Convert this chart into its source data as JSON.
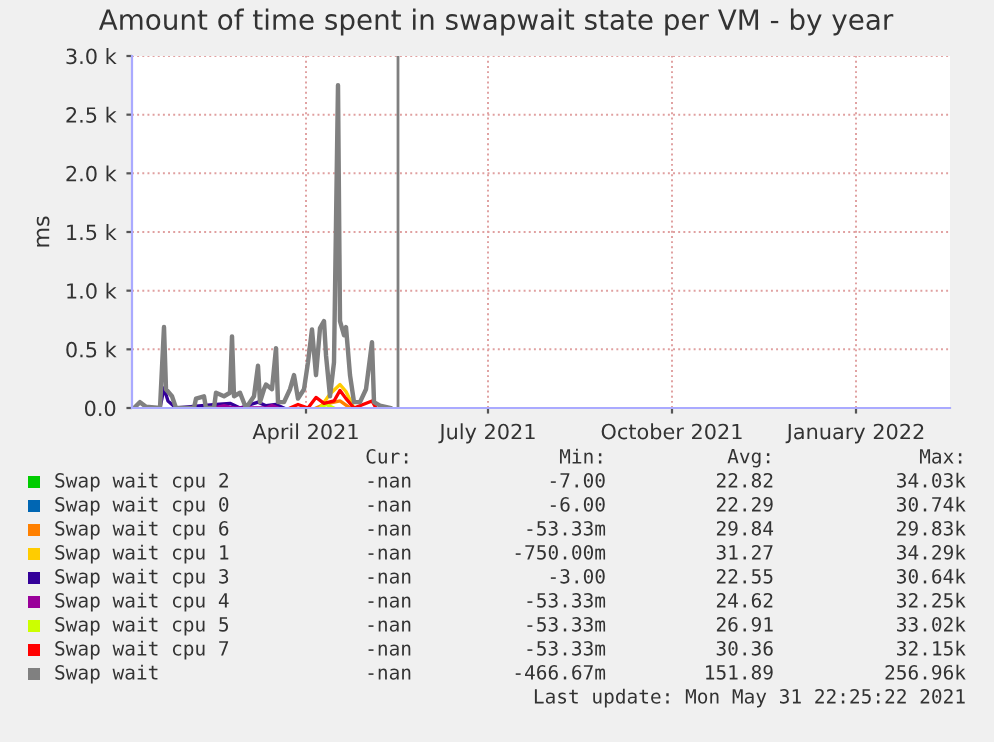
{
  "chart_data": {
    "type": "line",
    "title": "Amount of time spent in swapwait state per VM - by year",
    "ylabel": "ms",
    "xlim": [
      "2021-01-04",
      "2022-02-17"
    ],
    "xticks": [
      {
        "value": "2021-04-01",
        "label": "April 2021"
      },
      {
        "value": "2021-07-01",
        "label": "July 2021"
      },
      {
        "value": "2021-10-01",
        "label": "October 2021"
      },
      {
        "value": "2022-01-01",
        "label": "January 2022"
      }
    ],
    "ylim": [
      0,
      3000
    ],
    "yticks": [
      {
        "value": 0,
        "label": "0.0"
      },
      {
        "value": 500,
        "label": "0.5 k"
      },
      {
        "value": 1000,
        "label": "1.0 k"
      },
      {
        "value": 1500,
        "label": "1.5 k"
      },
      {
        "value": 2000,
        "label": "2.0 k"
      },
      {
        "value": 2500,
        "label": "2.5 k"
      },
      {
        "value": 3000,
        "label": "3.0 k"
      }
    ],
    "grid": true,
    "legend": "bottom",
    "ref_lines": [
      {
        "axis": "x",
        "value": "2021-05-17",
        "color": "#7f7f7f"
      }
    ],
    "series": [
      {
        "name": "Swap wait cpu 2",
        "color": "#00cc00"
      },
      {
        "name": "Swap wait cpu 0",
        "color": "#0066b3"
      },
      {
        "name": "Swap wait cpu 6",
        "color": "#ff8000",
        "x": [
          "2021-04-06",
          "2021-04-10",
          "2021-04-18",
          "2021-04-23"
        ],
        "values": [
          0,
          30,
          60,
          0
        ]
      },
      {
        "name": "Swap wait cpu 1",
        "color": "#ffcc00",
        "x": [
          "2021-04-08",
          "2021-04-13",
          "2021-04-18",
          "2021-04-21",
          "2021-04-25"
        ],
        "values": [
          0,
          120,
          200,
          140,
          0
        ]
      },
      {
        "name": "Swap wait cpu 3",
        "color": "#330099",
        "x": [
          "2021-01-18",
          "2021-01-20",
          "2021-01-22",
          "2021-01-26",
          "2021-02-15",
          "2021-02-22",
          "2021-02-27",
          "2021-03-08",
          "2021-03-12",
          "2021-03-17",
          "2021-03-21"
        ],
        "values": [
          0,
          170,
          60,
          0,
          30,
          40,
          0,
          50,
          20,
          30,
          0
        ]
      },
      {
        "name": "Swap wait cpu 4",
        "color": "#990099",
        "x": [
          "2021-02-14",
          "2021-02-19",
          "2021-02-24",
          "2021-03-12",
          "2021-03-15",
          "2021-03-18"
        ],
        "values": [
          0,
          20,
          0,
          0,
          20,
          0
        ]
      },
      {
        "name": "Swap wait cpu 5",
        "color": "#ccff00",
        "x": [
          "2021-04-08",
          "2021-04-11",
          "2021-04-15"
        ],
        "values": [
          0,
          30,
          0
        ]
      },
      {
        "name": "Swap wait cpu 7",
        "color": "#ff0000",
        "x": [
          "2021-03-24",
          "2021-03-28",
          "2021-04-02",
          "2021-04-06",
          "2021-04-10",
          "2021-04-15",
          "2021-04-18",
          "2021-04-21",
          "2021-04-25",
          "2021-05-04",
          "2021-05-06"
        ],
        "values": [
          0,
          30,
          0,
          90,
          40,
          60,
          150,
          80,
          0,
          60,
          0
        ]
      },
      {
        "name": "Swap wait",
        "color": "#808080",
        "x": [
          "2021-01-05",
          "2021-01-08",
          "2021-01-11",
          "2021-01-18",
          "2021-01-20",
          "2021-01-21",
          "2021-01-24",
          "2021-01-26",
          "2021-02-04",
          "2021-02-05",
          "2021-02-09",
          "2021-02-10",
          "2021-02-14",
          "2021-02-15",
          "2021-02-19",
          "2021-02-22",
          "2021-02-23",
          "2021-02-24",
          "2021-02-27",
          "2021-03-02",
          "2021-03-06",
          "2021-03-08",
          "2021-03-09",
          "2021-03-11",
          "2021-03-12",
          "2021-03-15",
          "2021-03-17",
          "2021-03-18",
          "2021-03-21",
          "2021-03-24",
          "2021-03-26",
          "2021-03-28",
          "2021-03-31",
          "2021-04-02",
          "2021-04-04",
          "2021-04-06",
          "2021-04-08",
          "2021-04-10",
          "2021-04-11",
          "2021-04-13",
          "2021-04-15",
          "2021-04-17",
          "2021-04-18",
          "2021-04-20",
          "2021-04-21",
          "2021-04-23",
          "2021-04-25",
          "2021-04-28",
          "2021-05-01",
          "2021-05-04",
          "2021-05-05",
          "2021-05-08",
          "2021-05-13"
        ],
        "values": [
          0,
          50,
          10,
          0,
          690,
          160,
          100,
          0,
          0,
          80,
          100,
          0,
          0,
          130,
          100,
          130,
          610,
          100,
          130,
          0,
          100,
          360,
          50,
          160,
          200,
          160,
          510,
          50,
          50,
          160,
          280,
          80,
          160,
          390,
          670,
          280,
          680,
          740,
          450,
          100,
          390,
          2750,
          740,
          620,
          690,
          280,
          50,
          50,
          160,
          560,
          50,
          20,
          0
        ]
      }
    ],
    "annotations": [
      "Cur:",
      "Min:",
      "Avg:",
      "Max:",
      "-nan",
      "-7.00",
      "22.82",
      "34.03k",
      "-nan",
      "-6.00",
      "22.29",
      "30.74k",
      "-nan",
      "-53.33m",
      "29.84",
      "29.83k",
      "-nan",
      "-750.00m",
      "31.27",
      "34.29k",
      "-nan",
      "-3.00",
      "22.55",
      "30.64k",
      "-nan",
      "-53.33m",
      "24.62",
      "32.25k",
      "-nan",
      "-53.33m",
      "26.91",
      "33.02k",
      "-nan",
      "-53.33m",
      "30.36",
      "32.15k",
      "-nan",
      "-466.67m",
      "151.89",
      "256.96k",
      "Last update: Mon May 31 22:25:22 2021"
    ]
  }
}
